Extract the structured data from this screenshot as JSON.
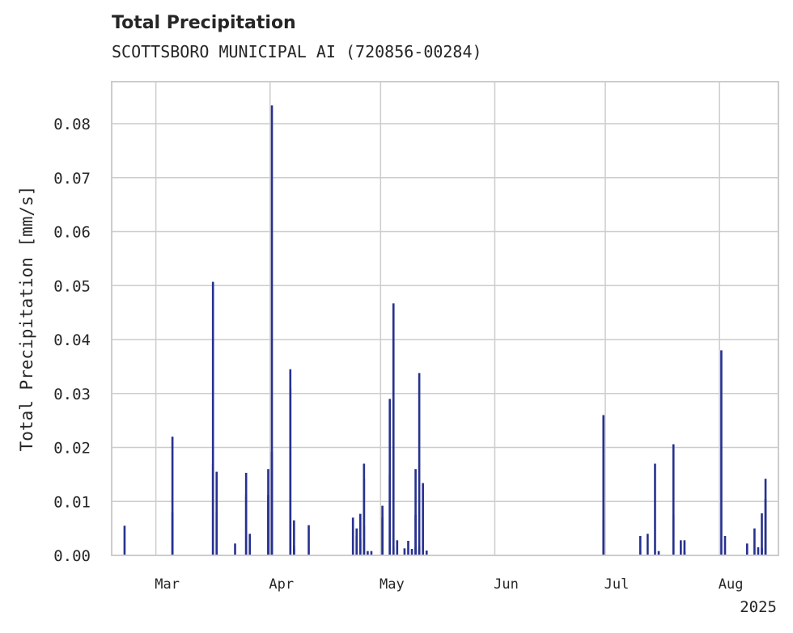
{
  "chart_data": {
    "type": "bar",
    "title": "Total Precipitation",
    "subtitle": "SCOTTSBORO MUNICIPAL AI (720856-00284)",
    "xlabel": "",
    "ylabel": "Total Precipitation [mm/s]",
    "year_label": "2025",
    "ylim": [
      0,
      0.0878
    ],
    "xlim": [
      "2025-02-17",
      "2025-08-17"
    ],
    "y_ticks": [
      {
        "value": 0.0,
        "label": "0.00"
      },
      {
        "value": 0.01,
        "label": "0.01"
      },
      {
        "value": 0.02,
        "label": "0.02"
      },
      {
        "value": 0.03,
        "label": "0.03"
      },
      {
        "value": 0.04,
        "label": "0.04"
      },
      {
        "value": 0.05,
        "label": "0.05"
      },
      {
        "value": 0.06,
        "label": "0.06"
      },
      {
        "value": 0.07,
        "label": "0.07"
      },
      {
        "value": 0.08,
        "label": "0.08"
      }
    ],
    "x_ticks": [
      {
        "date": "2025-03-01",
        "label": "Mar"
      },
      {
        "date": "2025-04-01",
        "label": "Apr"
      },
      {
        "date": "2025-05-01",
        "label": "May"
      },
      {
        "date": "2025-06-01",
        "label": "Jun"
      },
      {
        "date": "2025-07-01",
        "label": "Jul"
      },
      {
        "date": "2025-08-01",
        "label": "Aug"
      }
    ],
    "grid": true,
    "color": "#27318f",
    "x": [
      "2025-02-20",
      "2025-03-05",
      "2025-03-05",
      "2025-03-16",
      "2025-03-16",
      "2025-03-17",
      "2025-03-17",
      "2025-03-22",
      "2025-03-25",
      "2025-03-25",
      "2025-03-26",
      "2025-03-31",
      "2025-03-31",
      "2025-04-01",
      "2025-04-01",
      "2025-04-06",
      "2025-04-06",
      "2025-04-07",
      "2025-04-07",
      "2025-04-07",
      "2025-04-11",
      "2025-04-23",
      "2025-04-24",
      "2025-04-24",
      "2025-04-25",
      "2025-04-25",
      "2025-04-26",
      "2025-04-26",
      "2025-04-26",
      "2025-04-27",
      "2025-04-28",
      "2025-05-01",
      "2025-05-01",
      "2025-05-03",
      "2025-05-03",
      "2025-05-04",
      "2025-05-04",
      "2025-05-05",
      "2025-05-07",
      "2025-05-08",
      "2025-05-09",
      "2025-05-10",
      "2025-05-10",
      "2025-05-10",
      "2025-05-11",
      "2025-05-11",
      "2025-05-11",
      "2025-05-12",
      "2025-05-13",
      "2025-06-30",
      "2025-06-30",
      "2025-07-10",
      "2025-07-10",
      "2025-07-12",
      "2025-07-14",
      "2025-07-15",
      "2025-07-19",
      "2025-07-19",
      "2025-07-21",
      "2025-07-22",
      "2025-07-22",
      "2025-08-01",
      "2025-08-02",
      "2025-08-08",
      "2025-08-10",
      "2025-08-11",
      "2025-08-12",
      "2025-08-12",
      "2025-08-13",
      "2025-08-13"
    ],
    "values": [
      0.0055,
      0.022,
      0.008,
      0.0507,
      0.017,
      0.0155,
      0.008,
      0.0022,
      0.0113,
      0.0153,
      0.004,
      0.016,
      0.0112,
      0.0834,
      0.0192,
      0.031,
      0.0345,
      0.0065,
      0.0018,
      0.0012,
      0.0056,
      0.007,
      0.005,
      0.0035,
      0.0077,
      0.003,
      0.0055,
      0.017,
      0.0142,
      0.0008,
      0.0008,
      0.007,
      0.0092,
      0.029,
      0.015,
      0.0467,
      0.0015,
      0.0028,
      0.0013,
      0.0027,
      0.0012,
      0.016,
      0.0075,
      0.0015,
      0.0338,
      0.0018,
      0.0011,
      0.0134,
      0.0009,
      0.026,
      0.0065,
      0.0036,
      0.0009,
      0.004,
      0.017,
      0.0008,
      0.0206,
      0.0075,
      0.0028,
      0.0028,
      0.0007,
      0.038,
      0.0036,
      0.0022,
      0.005,
      0.0015,
      0.0014,
      0.0078,
      0.0105,
      0.0142
    ]
  }
}
